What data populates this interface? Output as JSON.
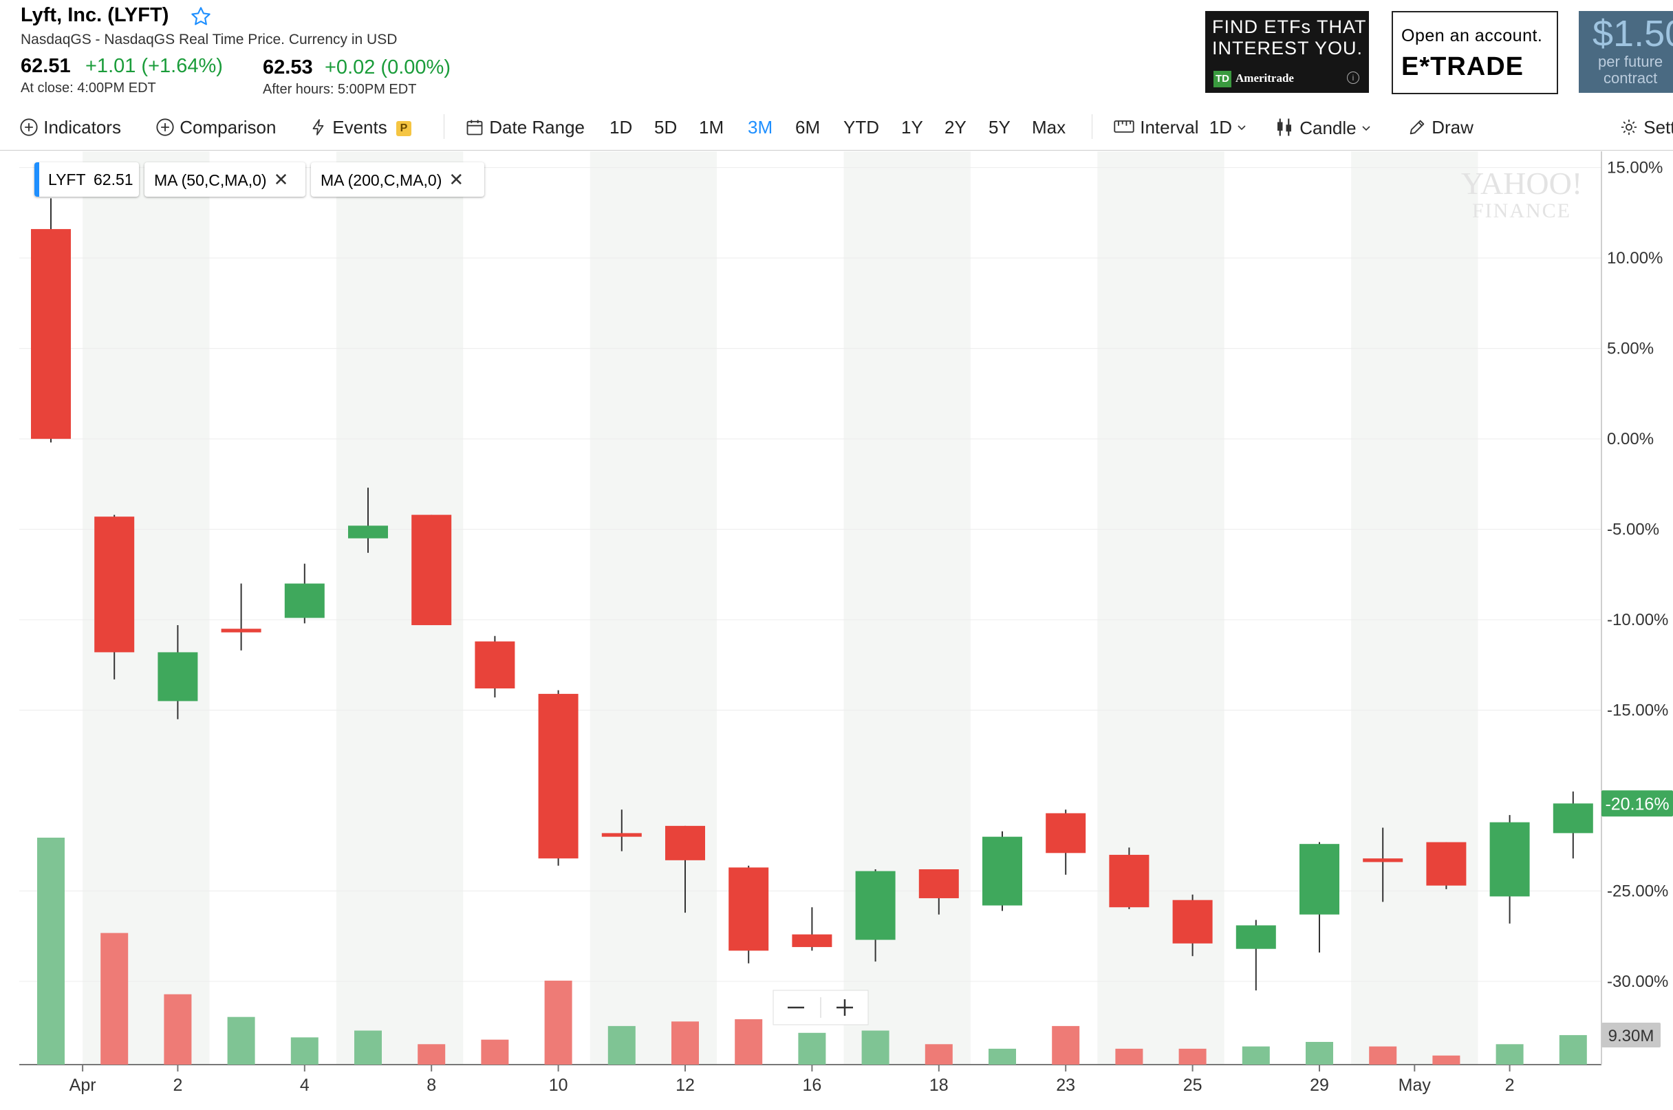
{
  "header": {
    "title": "Lyft, Inc. (LYFT)",
    "subtitle": "NasdaqGS - NasdaqGS Real Time Price. Currency in USD",
    "close_price": "62.51",
    "close_change": "+1.01 (+1.64%)",
    "close_label": "At close: 4:00PM EDT",
    "after_price": "62.53",
    "after_change": "+0.02 (0.00%)",
    "after_label": "After hours: 5:00PM EDT"
  },
  "ads": {
    "td_text1": "FIND ETFs THAT",
    "td_text2": "INTEREST YOU.",
    "td_logo": "TD",
    "td_brand": "Ameritrade",
    "et_text1": "Open an account.",
    "et_text2": "E*TRADE",
    "fut_text1": "$1.50",
    "fut_text2": "per future",
    "fut_text3": "contract"
  },
  "toolbar": {
    "indicators": "Indicators",
    "comparison": "Comparison",
    "events": "Events",
    "events_badge": "P",
    "date_range": "Date Range",
    "ranges": [
      "1D",
      "5D",
      "1M",
      "3M",
      "6M",
      "YTD",
      "1Y",
      "2Y",
      "5Y",
      "Max"
    ],
    "active_range": "3M",
    "interval_label": "Interval",
    "interval_value": "1D",
    "chart_type": "Candle",
    "draw": "Draw",
    "settings": "Settings"
  },
  "legend": {
    "symbol": "LYFT",
    "symbol_value": "62.51",
    "ma1": "MA (50,C,MA,0)",
    "ma2": "MA (200,C,MA,0)"
  },
  "colors": {
    "up": "#3fa85c",
    "down": "#e8433a",
    "vol_up": "#7fc494",
    "vol_down": "#ee7b76",
    "accent": "#1e8fff"
  },
  "chart_data": {
    "type": "candlestick",
    "ylabel": "",
    "y_unit": "%",
    "ylim": [
      -34.6,
      15.9
    ],
    "y_ticks": [
      "15.00%",
      "10.00%",
      "5.00%",
      "0.00%",
      "-5.00%",
      "-10.00%",
      "-15.00%",
      "-25.00%",
      "-30.00%"
    ],
    "y_tick_values": [
      15,
      10,
      5,
      0,
      -5,
      -10,
      -15,
      -25,
      -30
    ],
    "current_value_label": "-20.16%",
    "current_value": -20.16,
    "volume_label": "9.30M",
    "watermark": [
      "YAHOO!",
      "FINANCE"
    ],
    "x_tick_labels": [
      "Apr",
      "2",
      "4",
      "8",
      "10",
      "12",
      "16",
      "18",
      "23",
      "25",
      "29",
      "May",
      "2"
    ],
    "x_tick_index": [
      0.5,
      2,
      4,
      6,
      8,
      10,
      12,
      14,
      16,
      18,
      20,
      21.5,
      23
    ],
    "candles": [
      {
        "open": 11.6,
        "high": 13.3,
        "low": -0.2,
        "close": 0.0
      },
      {
        "open": -4.3,
        "high": -4.2,
        "low": -13.3,
        "close": -11.8
      },
      {
        "open": -14.5,
        "high": -10.3,
        "low": -15.5,
        "close": -11.8
      },
      {
        "open": -10.5,
        "high": -8.0,
        "low": -11.7,
        "close": -10.7
      },
      {
        "open": -9.9,
        "high": -6.9,
        "low": -10.2,
        "close": -8.0
      },
      {
        "open": -5.5,
        "high": -2.7,
        "low": -6.3,
        "close": -4.8
      },
      {
        "open": -4.2,
        "high": -4.2,
        "low": -10.3,
        "close": -10.3
      },
      {
        "open": -11.2,
        "high": -10.9,
        "low": -14.3,
        "close": -13.8
      },
      {
        "open": -14.1,
        "high": -13.9,
        "low": -23.6,
        "close": -23.2
      },
      {
        "open": -21.8,
        "high": -20.5,
        "low": -22.8,
        "close": -22.0
      },
      {
        "open": -21.4,
        "high": -21.4,
        "low": -26.2,
        "close": -23.3
      },
      {
        "open": -23.7,
        "high": -23.6,
        "low": -29.0,
        "close": -28.3
      },
      {
        "open": -27.4,
        "high": -25.9,
        "low": -28.3,
        "close": -28.1
      },
      {
        "open": -27.7,
        "high": -23.8,
        "low": -28.9,
        "close": -23.9
      },
      {
        "open": -23.8,
        "high": -23.8,
        "low": -26.3,
        "close": -25.4
      },
      {
        "open": -25.8,
        "high": -21.7,
        "low": -26.1,
        "close": -22.0
      },
      {
        "open": -20.7,
        "high": -20.5,
        "low": -24.1,
        "close": -22.9
      },
      {
        "open": -23.0,
        "high": -22.6,
        "low": -26.0,
        "close": -25.9
      },
      {
        "open": -25.5,
        "high": -25.2,
        "low": -28.6,
        "close": -27.9
      },
      {
        "open": -28.2,
        "high": -26.6,
        "low": -30.5,
        "close": -26.9
      },
      {
        "open": -26.3,
        "high": -22.3,
        "low": -28.4,
        "close": -22.4
      },
      {
        "open": -23.2,
        "high": -21.5,
        "low": -25.6,
        "close": -23.4
      },
      {
        "open": -22.3,
        "high": -22.3,
        "low": -24.9,
        "close": -24.7
      },
      {
        "open": -25.3,
        "high": -20.8,
        "low": -26.8,
        "close": -21.2
      },
      {
        "open": -21.8,
        "high": -19.5,
        "low": -23.2,
        "close": -20.16
      }
    ],
    "volume_relative": [
      1.0,
      0.58,
      0.31,
      0.21,
      0.12,
      0.15,
      0.09,
      0.11,
      0.37,
      0.17,
      0.19,
      0.2,
      0.14,
      0.15,
      0.09,
      0.07,
      0.17,
      0.07,
      0.07,
      0.08,
      0.1,
      0.08,
      0.04,
      0.09,
      0.13
    ],
    "volume_direction": [
      "up",
      "down",
      "down",
      "up",
      "up",
      "up",
      "down",
      "down",
      "down",
      "up",
      "down",
      "down",
      "up",
      "up",
      "down",
      "up",
      "down",
      "down",
      "down",
      "up",
      "up",
      "down",
      "down",
      "up",
      "up"
    ]
  }
}
